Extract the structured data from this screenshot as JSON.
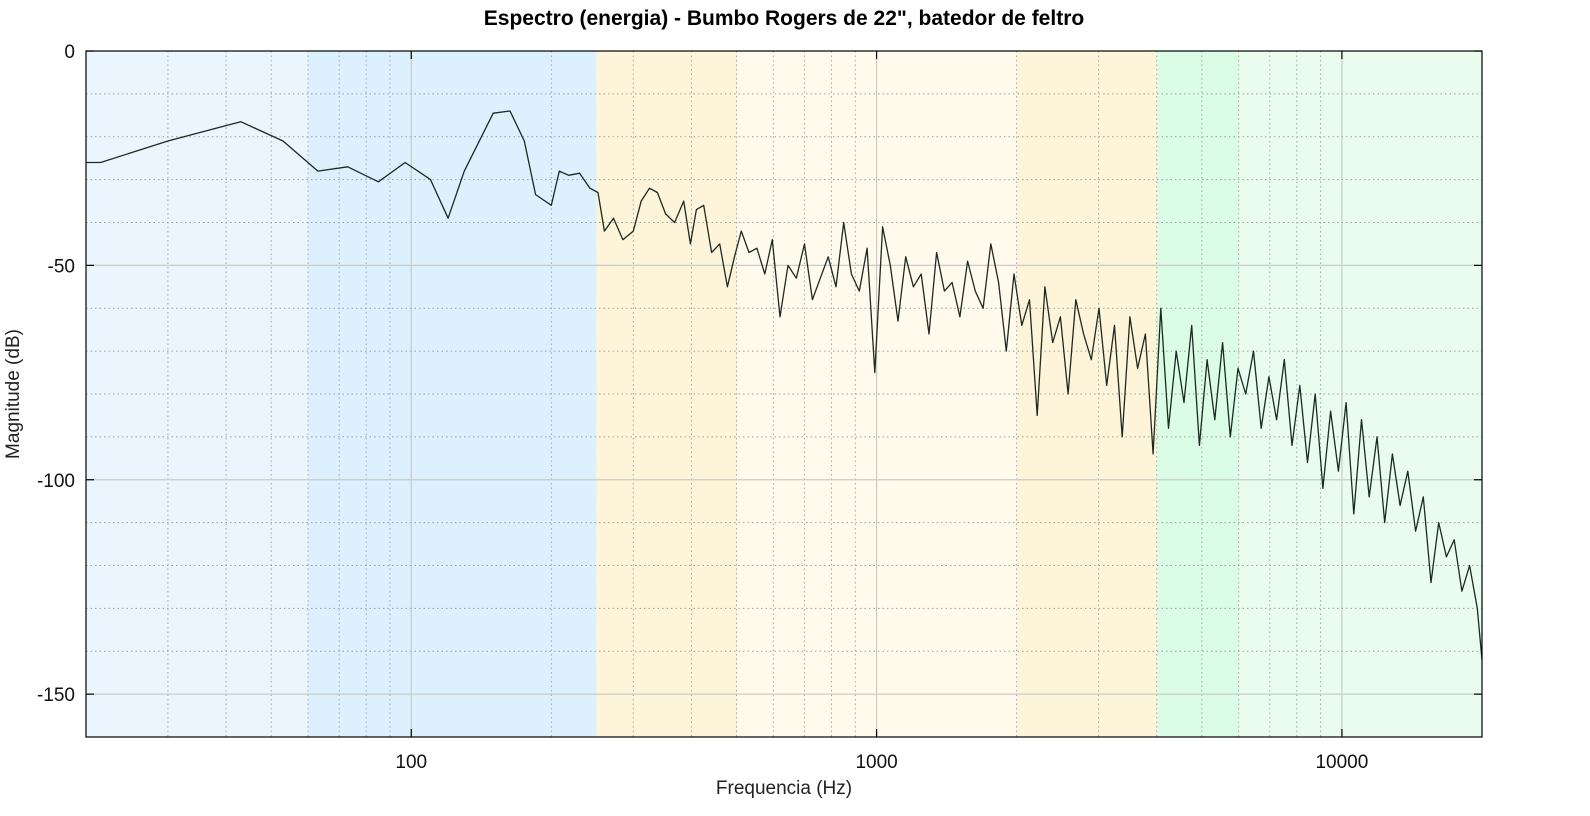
{
  "chart_data": {
    "type": "line",
    "title": "Espectro (energia) - Bumbo Rogers de 22\", batedor de feltro",
    "xlabel": "Frequencia (Hz)",
    "ylabel": "Magnitude (dB)",
    "x_scale": "log",
    "xlim": [
      20,
      20000
    ],
    "ylim": [
      -160,
      0
    ],
    "x_ticks": [
      100,
      1000,
      10000
    ],
    "x_tick_labels": [
      "100",
      "1000",
      "10000"
    ],
    "y_ticks": [
      0,
      -50,
      -100,
      -150
    ],
    "y_tick_labels": [
      "0",
      "-50",
      "-100",
      "-150"
    ],
    "grid": true,
    "bands": [
      {
        "from": 20,
        "to": 60,
        "color": "#eaf5fd"
      },
      {
        "from": 60,
        "to": 250,
        "color": "#dcf0fd"
      },
      {
        "from": 250,
        "to": 500,
        "color": "#fef4d9"
      },
      {
        "from": 500,
        "to": 2000,
        "color": "#fffaec"
      },
      {
        "from": 2000,
        "to": 4000,
        "color": "#fef4d9"
      },
      {
        "from": 4000,
        "to": 6000,
        "color": "#dcfde5"
      },
      {
        "from": 6000,
        "to": 20000,
        "color": "#e9fcee"
      }
    ],
    "line_color": "#1b2a22",
    "series": [
      {
        "x": [
          20,
          21.5,
          30,
          43,
          53,
          63,
          73,
          85,
          97,
          110,
          120,
          130,
          150,
          163,
          175,
          185,
          200,
          208,
          218,
          230,
          242,
          252,
          260,
          272,
          285,
          300,
          312,
          325,
          338,
          352,
          368,
          385,
          398,
          410,
          425,
          442,
          460,
          478,
          495,
          512,
          532,
          553,
          575,
          597,
          620,
          645,
          672,
          700,
          728,
          757,
          787,
          818,
          850,
          883,
          918,
          954,
          991,
          1030,
          1070,
          1112,
          1155,
          1200,
          1247,
          1296,
          1346,
          1399,
          1453,
          1510,
          1569,
          1630,
          1694,
          1760,
          1829,
          1900,
          1974,
          2051,
          2131,
          2214,
          2300,
          2390,
          2483,
          2580,
          2680,
          2785,
          2893,
          3006,
          3123,
          3245,
          3371,
          3503,
          3639,
          3781,
          3928,
          4081,
          4240,
          4405,
          4577,
          4755,
          4940,
          5133,
          5332,
          5540,
          5756,
          5980,
          6213,
          6455,
          6706,
          6967,
          7238,
          7520,
          7813,
          8117,
          8433,
          8761,
          9102,
          9457,
          9825,
          10207,
          10605,
          11018,
          11447,
          11893,
          12356,
          12837,
          13337,
          13857,
          14396,
          14957,
          15539,
          16144,
          16773,
          17426,
          18105,
          18810,
          19543,
          20000
        ],
        "y": [
          -26,
          -26,
          -21,
          -16.5,
          -21,
          -28,
          -27,
          -30.5,
          -26,
          -30,
          -39,
          -28,
          -14.5,
          -14,
          -21,
          -33.5,
          -36,
          -28,
          -29,
          -28.5,
          -32,
          -33,
          -42,
          -39,
          -44,
          -42,
          -35,
          -32,
          -33,
          -38,
          -40,
          -35,
          -45,
          -37,
          -36,
          -47,
          -45,
          -55,
          -48,
          -42,
          -47,
          -46,
          -52,
          -44,
          -62,
          -50,
          -53,
          -45,
          -58,
          -53,
          -48,
          -55,
          -40,
          -52,
          -56,
          -46,
          -75,
          -41,
          -50,
          -63,
          -48,
          -55,
          -52,
          -66,
          -47,
          -56,
          -54,
          -62,
          -49,
          -56,
          -60,
          -45,
          -54,
          -70,
          -52,
          -64,
          -58,
          -85,
          -55,
          -68,
          -62,
          -80,
          -58,
          -66,
          -72,
          -60,
          -78,
          -64,
          -90,
          -62,
          -74,
          -66,
          -94,
          -60,
          -88,
          -70,
          -82,
          -64,
          -92,
          -72,
          -86,
          -68,
          -90,
          -74,
          -80,
          -70,
          -88,
          -76,
          -86,
          -72,
          -92,
          -78,
          -96,
          -80,
          -102,
          -84,
          -98,
          -82,
          -108,
          -86,
          -104,
          -90,
          -110,
          -94,
          -106,
          -98,
          -112,
          -104,
          -124,
          -110,
          -118,
          -114,
          -126,
          -120,
          -130,
          -142
        ]
      }
    ]
  }
}
